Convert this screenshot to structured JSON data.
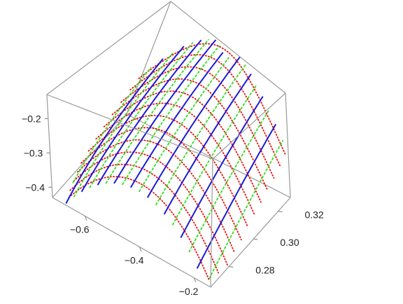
{
  "chart_data": {
    "type": "surface-3d",
    "title": "",
    "xlabel": "",
    "ylabel": "",
    "zlabel": "",
    "x_ticks": [
      {
        "value": -0.6,
        "label": "−0.6"
      },
      {
        "value": -0.4,
        "label": "−0.4"
      },
      {
        "value": -0.2,
        "label": "−0.2"
      }
    ],
    "y_ticks": [
      {
        "value": 0.28,
        "label": "0.28"
      },
      {
        "value": 0.3,
        "label": "0.30"
      },
      {
        "value": 0.32,
        "label": "0.32"
      }
    ],
    "z_ticks": [
      {
        "value": -0.2,
        "label": "−0.2"
      },
      {
        "value": -0.3,
        "label": "−0.3"
      },
      {
        "value": -0.4,
        "label": "−0.4"
      }
    ],
    "xlim": [
      -0.72,
      -0.14
    ],
    "ylim": [
      0.265,
      0.33
    ],
    "zlim": [
      -0.43,
      -0.13
    ],
    "box": true,
    "grid": false,
    "colors": {
      "dotted_curves": "#e8120c",
      "green_curves": "#33dd22",
      "blue_curves": "#1a1ad9",
      "box": "#9a9a9a"
    },
    "families": [
      {
        "color_key": "dotted_curves",
        "style": "dotted",
        "description_of_shape": "downward parabolas in x",
        "x_range": [
          -0.72,
          -0.14
        ],
        "parameter_values": [
          0.268,
          0.2735,
          0.279,
          0.2845,
          0.29,
          0.2955,
          0.301,
          0.3065,
          0.312,
          0.3175,
          0.323,
          0.328
        ],
        "vertex_x": -0.42,
        "curvature": 2.2,
        "offset_z": -0.2,
        "slope_y": 2.5
      },
      {
        "color_key": "green_curves",
        "style": "dashed",
        "parameter_values": [
          -0.7,
          -0.64,
          -0.58,
          -0.52,
          -0.46,
          -0.4,
          -0.34,
          -0.28,
          -0.22,
          -0.16
        ],
        "y_range": [
          0.265,
          0.33
        ]
      },
      {
        "color_key": "blue_curves",
        "style": "solid",
        "parameter_values": [
          -0.67,
          -0.61,
          -0.55,
          -0.49,
          -0.43,
          -0.37,
          -0.31,
          -0.25,
          -0.19
        ],
        "y_range": [
          0.265,
          0.33
        ]
      }
    ]
  }
}
